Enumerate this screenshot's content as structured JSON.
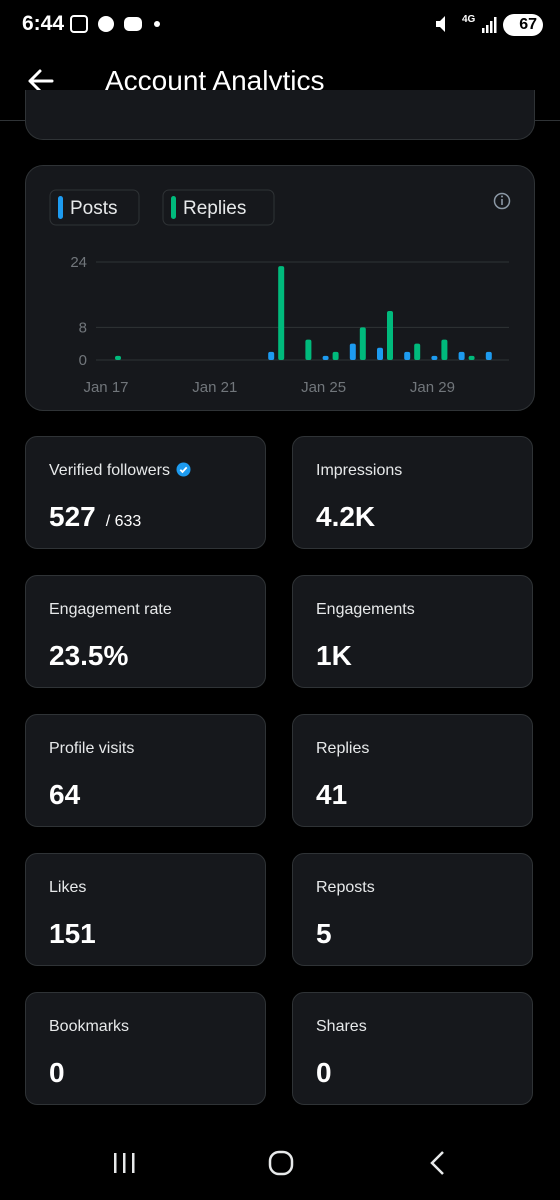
{
  "status_bar": {
    "time": "6:44",
    "network": "4G",
    "battery": "67"
  },
  "header": {
    "title": "Account Analytics"
  },
  "chart_data": {
    "type": "bar",
    "categories": [
      "Jan 17",
      null,
      null,
      null,
      "Jan 21",
      null,
      null,
      null,
      "Jan 25",
      null,
      null,
      null,
      "Jan 29",
      null,
      null
    ],
    "series": [
      {
        "name": "Posts",
        "color": "#1d9bf0",
        "values": [
          0,
          0,
          0,
          0,
          0,
          0,
          2,
          0,
          1,
          4,
          3,
          2,
          1,
          2,
          2
        ]
      },
      {
        "name": "Replies",
        "color": "#00ba7c",
        "values": [
          1,
          0,
          0,
          0,
          0,
          0,
          23,
          5,
          2,
          8,
          12,
          4,
          5,
          1,
          0
        ]
      }
    ],
    "ylim": [
      0,
      24
    ],
    "yticks": [
      0,
      8,
      24
    ],
    "grid": true
  },
  "metrics": [
    {
      "label": "Verified followers",
      "value": "527",
      "total": "/ 633"
    },
    {
      "label": "Impressions",
      "value": "4.2K"
    },
    {
      "label": "Engagement rate",
      "value": "23.5%"
    },
    {
      "label": "Engagements",
      "value": "1K"
    },
    {
      "label": "Profile visits",
      "value": "64"
    },
    {
      "label": "Replies",
      "value": "41"
    },
    {
      "label": "Likes",
      "value": "151"
    },
    {
      "label": "Reposts",
      "value": "5"
    },
    {
      "label": "Bookmarks",
      "value": "0"
    },
    {
      "label": "Shares",
      "value": "0"
    }
  ]
}
